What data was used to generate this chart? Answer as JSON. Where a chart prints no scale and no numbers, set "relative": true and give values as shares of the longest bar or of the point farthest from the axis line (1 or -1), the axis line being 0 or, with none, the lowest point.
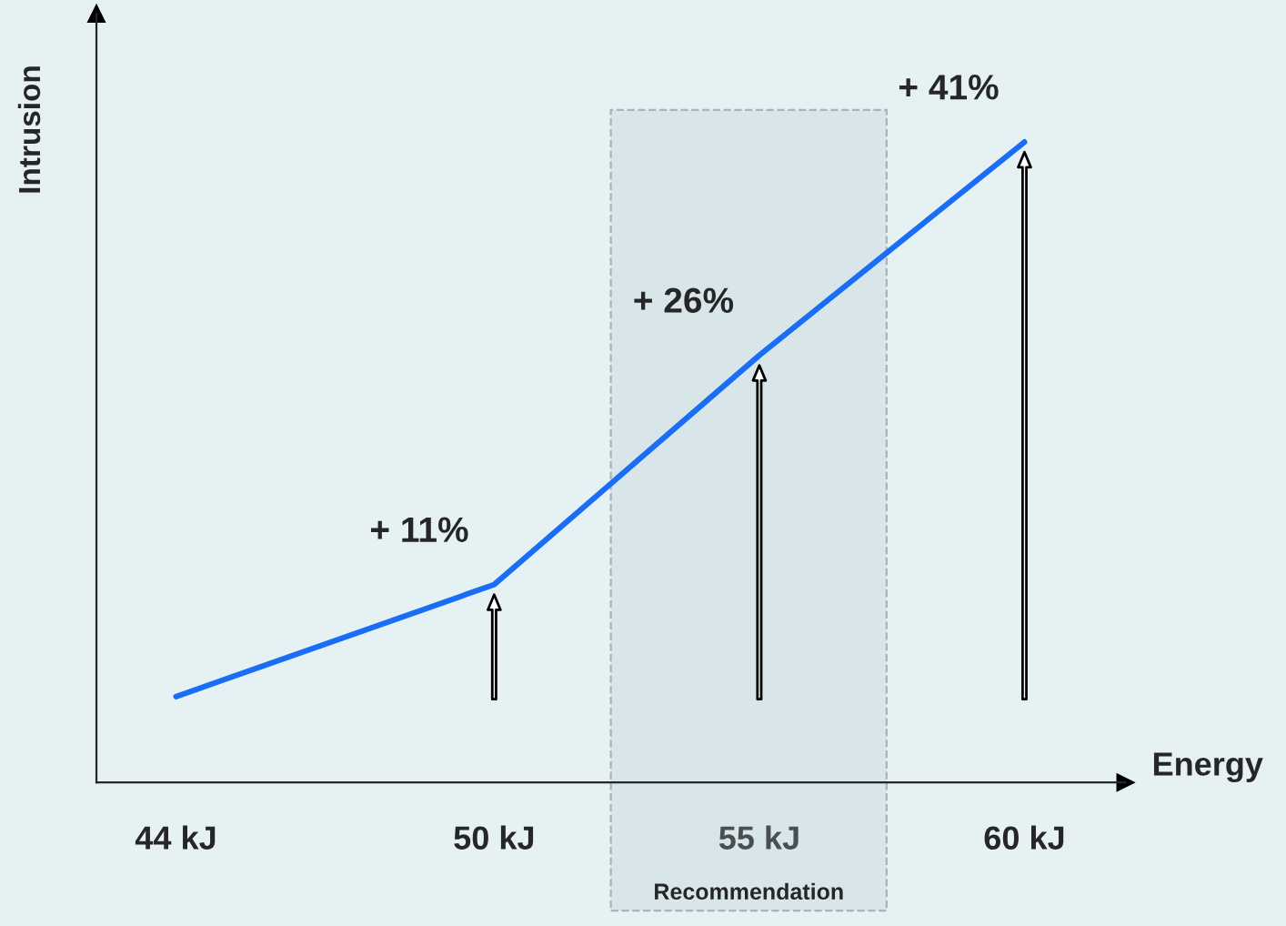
{
  "chart_data": {
    "type": "line",
    "relative": true,
    "xlabel": "Energy",
    "ylabel": "Intrusion",
    "x": [
      44,
      50,
      55,
      60
    ],
    "series": [
      {
        "color": "#1a6ef5",
        "values": [
          0.134,
          0.309,
          0.667,
          1
        ]
      }
    ],
    "xlim": [
      42.5,
      61.9
    ],
    "xticks": [
      {
        "value": 44,
        "label": "44 kJ"
      },
      {
        "value": 50,
        "label": "50 kJ"
      },
      {
        "value": 55,
        "label": "55 kJ"
      },
      {
        "value": 60,
        "label": "60 kJ"
      }
    ],
    "annotations": [
      {
        "text": "+ 11%",
        "x": 50,
        "y": 0.309
      },
      {
        "text": "+ 26%",
        "x": 55,
        "y": 0.667
      },
      {
        "text": "+ 41%",
        "x": 60,
        "y": 1
      }
    ],
    "bands": [
      {
        "axis": "x",
        "from": 52.2,
        "to": 57.4,
        "label": "Recommendation"
      }
    ],
    "grid": false,
    "marker": "none",
    "line_style": "solid"
  }
}
